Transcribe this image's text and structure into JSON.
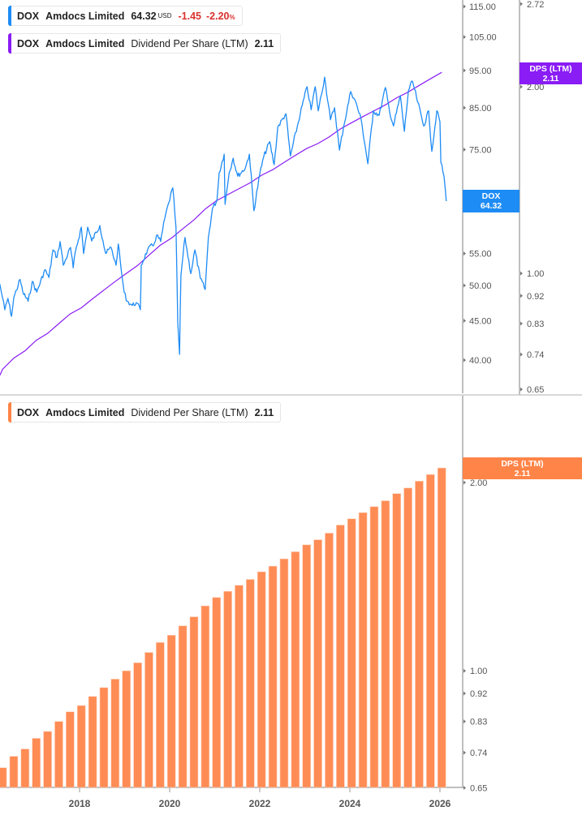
{
  "legend_price": {
    "ticker": "DOX",
    "name": "Amdocs Limited",
    "price": "64.32",
    "currency": "USD",
    "change": "-1.45",
    "change_pct": "-2.20",
    "pct_sign": "%"
  },
  "legend_dps_top": {
    "ticker": "DOX",
    "name": "Amdocs Limited",
    "metric": "Dividend Per Share (LTM)",
    "value": "2.11"
  },
  "legend_dps_bottom": {
    "ticker": "DOX",
    "name": "Amdocs Limited",
    "metric": "Dividend Per Share (LTM)",
    "value": "2.11"
  },
  "tags": {
    "dox": {
      "line1": "DOX",
      "line2": "64.32"
    },
    "dps_top": {
      "line1": "DPS (LTM)",
      "line2": "2.11"
    },
    "dps_bottom": {
      "line1": "DPS (LTM)",
      "line2": "2.11"
    }
  },
  "colors": {
    "price": "#1e8cf5",
    "dps_line": "#8a1cf5",
    "dps_bar": "#ff8c55",
    "negative": "#d9322b"
  },
  "chart_data": [
    {
      "type": "line",
      "title": "DOX Amdocs Limited price vs Dividend Per Share (LTM)",
      "yscale": "log",
      "price_axis": {
        "ticks": [
          115,
          105,
          95,
          85,
          75,
          65,
          55,
          50,
          45,
          40
        ],
        "tick_labels": [
          "115.00",
          "105.00",
          "95.00",
          "85.00",
          "75.00",
          "65",
          "55.00",
          "50.00",
          "45.00",
          "40.00"
        ],
        "range": [
          35.4,
          117
        ]
      },
      "dps_axis": {
        "ticks": [
          2.72,
          2.0,
          1.0,
          0.92,
          0.83,
          0.74,
          0.65
        ],
        "tick_labels": [
          "2.72",
          "2.00",
          "1.00",
          "0.92",
          "0.83",
          "0.74",
          "0.65"
        ],
        "range": [
          0.65,
          2.74
        ]
      },
      "series": [
        {
          "name": "DOX price",
          "x": [
            2016.23,
            2016.29,
            2016.34,
            2016.41,
            2016.49,
            2016.54,
            2016.68,
            2016.74,
            2016.86,
            2016.95,
            2017.05,
            2017.23,
            2017.32,
            2017.41,
            2017.5,
            2017.57,
            2017.64,
            2017.8,
            2017.86,
            2017.91,
            2018.04,
            2018.09,
            2018.18,
            2018.27,
            2018.45,
            2018.52,
            2018.58,
            2018.7,
            2018.81,
            2018.86,
            2018.94,
            2018.99,
            2019.06,
            2019.17,
            2019.26,
            2019.35,
            2019.37,
            2019.51,
            2019.66,
            2019.71,
            2019.8,
            2019.89,
            2019.98,
            2020.07,
            2020.14,
            2020.18,
            2020.22,
            2020.25,
            2020.34,
            2020.47,
            2020.56,
            2020.68,
            2020.79,
            2020.86,
            2020.95,
            2021.05,
            2021.1,
            2021.21,
            2021.23,
            2021.32,
            2021.41,
            2021.51,
            2021.68,
            2021.77,
            2021.87,
            2022.0,
            2022.09,
            2022.22,
            2022.32,
            2022.4,
            2022.58,
            2022.68,
            2022.9,
            2023.05,
            2023.14,
            2023.23,
            2023.3,
            2023.44,
            2023.57,
            2023.66,
            2023.77,
            2023.86,
            2024.02,
            2024.11,
            2024.25,
            2024.4,
            2024.52,
            2024.65,
            2024.79,
            2024.88,
            2024.97,
            2025.12,
            2025.21,
            2025.3,
            2025.39,
            2025.48,
            2025.64,
            2025.75,
            2025.82,
            2025.93,
            2026.0,
            2026.02,
            2026.09,
            2026.14
          ],
          "y": [
            50.2,
            48.2,
            46.5,
            48.1,
            45.6,
            48.2,
            50.9,
            49.0,
            47.7,
            50.6,
            49.0,
            52.4,
            51.2,
            55.6,
            54.4,
            57.0,
            53.1,
            56.0,
            52.7,
            55.4,
            59.5,
            55.0,
            59.5,
            57.1,
            59.8,
            57.1,
            55.0,
            56.0,
            53.1,
            56.6,
            51.5,
            49.0,
            47.7,
            47.1,
            47.5,
            46.5,
            53.1,
            55.6,
            56.7,
            58.1,
            57.0,
            61.0,
            64.0,
            66.9,
            59.5,
            44.8,
            40.7,
            51.5,
            57.7,
            51.8,
            55.6,
            51.1,
            49.4,
            57.7,
            62.9,
            64.5,
            70.0,
            74.0,
            63.7,
            70.0,
            73.1,
            69.3,
            71.0,
            74.0,
            62.5,
            69.7,
            73.5,
            76.8,
            71.7,
            80.2,
            83.5,
            73.6,
            83.5,
            90.5,
            84.5,
            90.5,
            84.2,
            93.1,
            82.0,
            85.0,
            74.9,
            80.2,
            89.2,
            87.1,
            82.1,
            71.9,
            84.2,
            83.1,
            90.3,
            84.2,
            80.5,
            88.1,
            79.2,
            89.4,
            92.0,
            87.7,
            80.5,
            84.2,
            74.6,
            84.2,
            81.5,
            72.2,
            69.3,
            64.32
          ]
        },
        {
          "name": "Dividend Per Share (LTM)",
          "axis": "dps",
          "source": "dps_bars"
        }
      ]
    },
    {
      "type": "bar",
      "title": "DOX Amdocs Limited Dividend Per Share (LTM)",
      "yscale": "log",
      "x_ticks": [
        2018,
        2020,
        2022,
        2024,
        2026
      ],
      "x_tick_labels": [
        "2018",
        "2020",
        "2022",
        "2024",
        "2026"
      ],
      "y_ticks": [
        2.0,
        1.0,
        0.92,
        0.83,
        0.74,
        0.65
      ],
      "y_tick_labels": [
        "2.00",
        "1.00",
        "0.92",
        "0.83",
        "0.74",
        "0.65"
      ],
      "ylim": [
        0.65,
        2.2
      ],
      "x_start": 2016.29,
      "x_step": 0.25,
      "values": [
        0.7,
        0.73,
        0.75,
        0.78,
        0.8,
        0.83,
        0.86,
        0.88,
        0.91,
        0.94,
        0.97,
        1.0,
        1.03,
        1.07,
        1.11,
        1.14,
        1.18,
        1.22,
        1.27,
        1.31,
        1.34,
        1.37,
        1.4,
        1.44,
        1.47,
        1.51,
        1.55,
        1.59,
        1.62,
        1.66,
        1.71,
        1.75,
        1.79,
        1.83,
        1.87,
        1.92,
        1.96,
        2.01,
        2.06,
        2.11
      ]
    }
  ]
}
